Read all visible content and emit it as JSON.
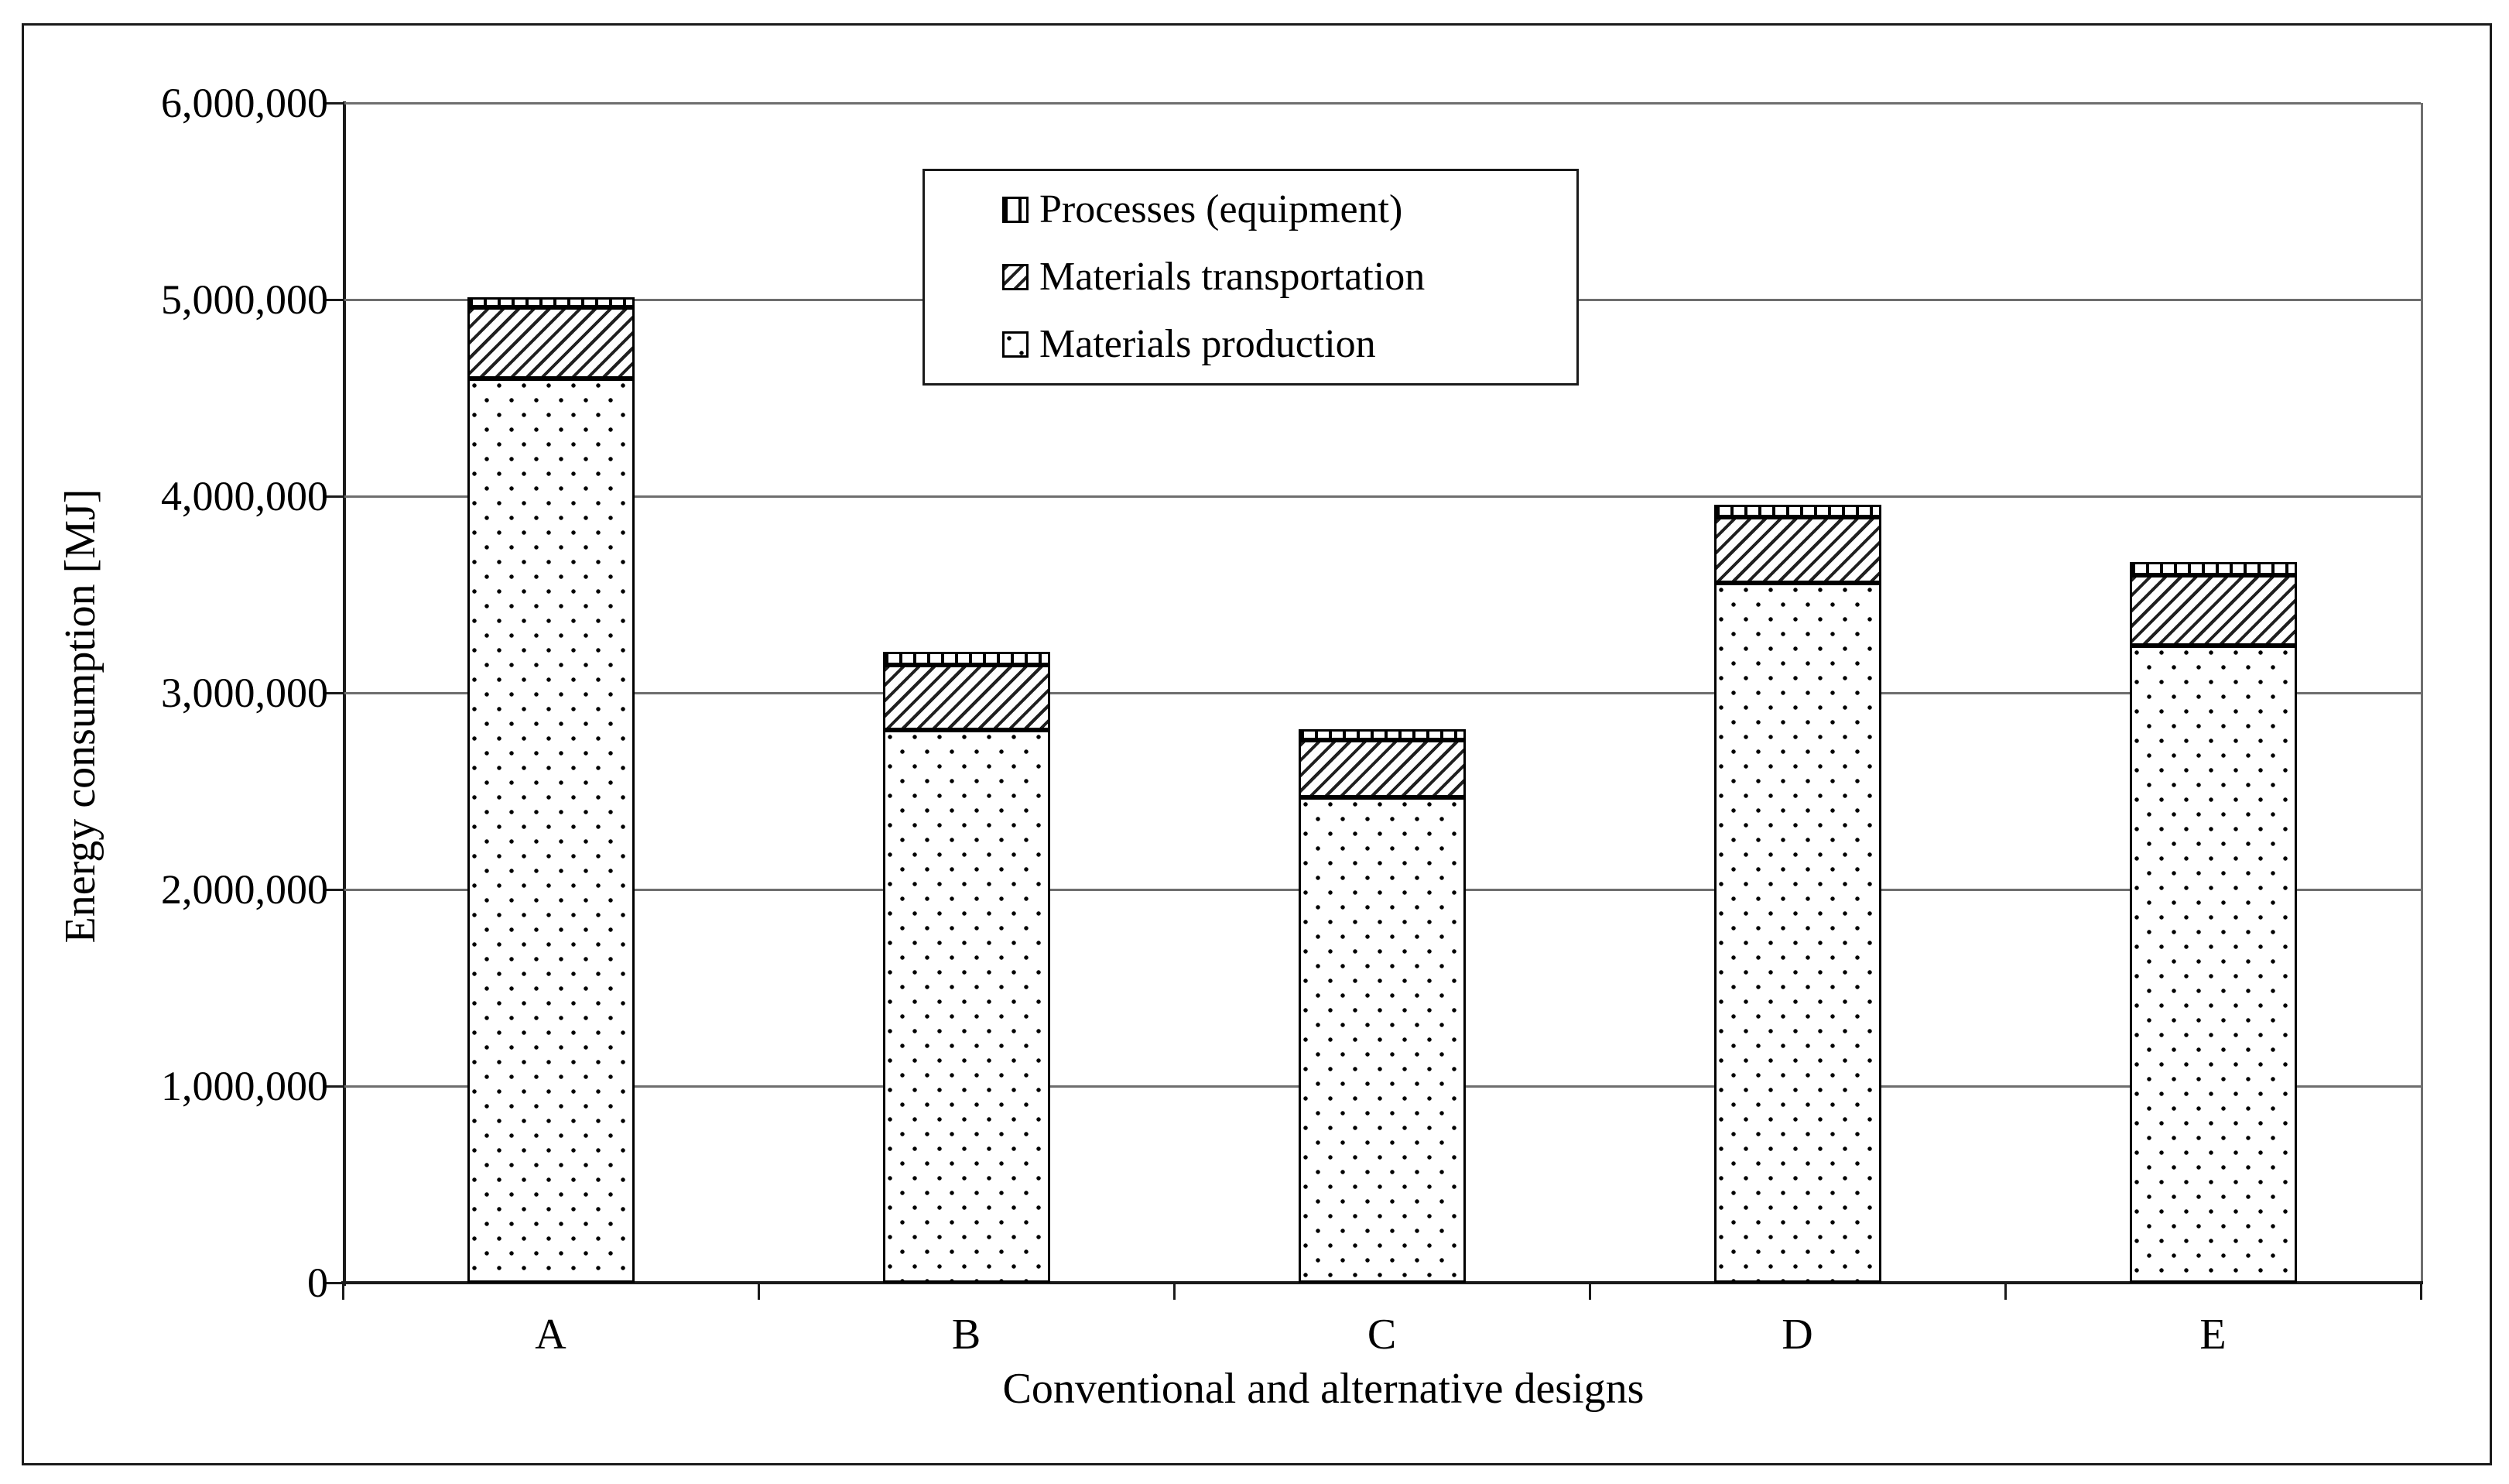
{
  "figure": {
    "background": "#ffffff",
    "outer_border_color": "#1a1a1a",
    "axis_color": "#1a1a1a",
    "gridline_color": "#6e6e6e"
  },
  "chart_data": {
    "type": "bar",
    "stacked": true,
    "title": "",
    "xlabel": "Conventional and alternative designs",
    "ylabel": "Energy consumption [MJ]",
    "categories": [
      "A",
      "B",
      "C",
      "D",
      "E"
    ],
    "series": [
      {
        "name": "Materials production",
        "pattern": "dots",
        "values": [
          4600000,
          2810000,
          2470000,
          3560000,
          3240000
        ]
      },
      {
        "name": "Materials transportation",
        "pattern": "diagonal-hatch",
        "values": [
          360000,
          330000,
          290000,
          335000,
          360000
        ]
      },
      {
        "name": "Processes (equipment)",
        "pattern": "vertical-dashes",
        "values": [
          50000,
          70000,
          55000,
          60000,
          65000
        ]
      }
    ],
    "ylim": [
      0,
      6000000
    ],
    "ytick_interval": 1000000,
    "ytick_values": [
      0,
      1000000,
      2000000,
      3000000,
      4000000,
      5000000,
      6000000
    ],
    "ytick_labels": [
      "0",
      "1,000,000",
      "2,000,000",
      "3,000,000",
      "4,000,000",
      "5,000,000",
      "6,000,000"
    ],
    "grid": "horizontal",
    "legend": {
      "position": "top-center-inside",
      "entries": [
        "Processes (equipment)",
        "Materials transportation",
        "Materials production"
      ]
    }
  }
}
